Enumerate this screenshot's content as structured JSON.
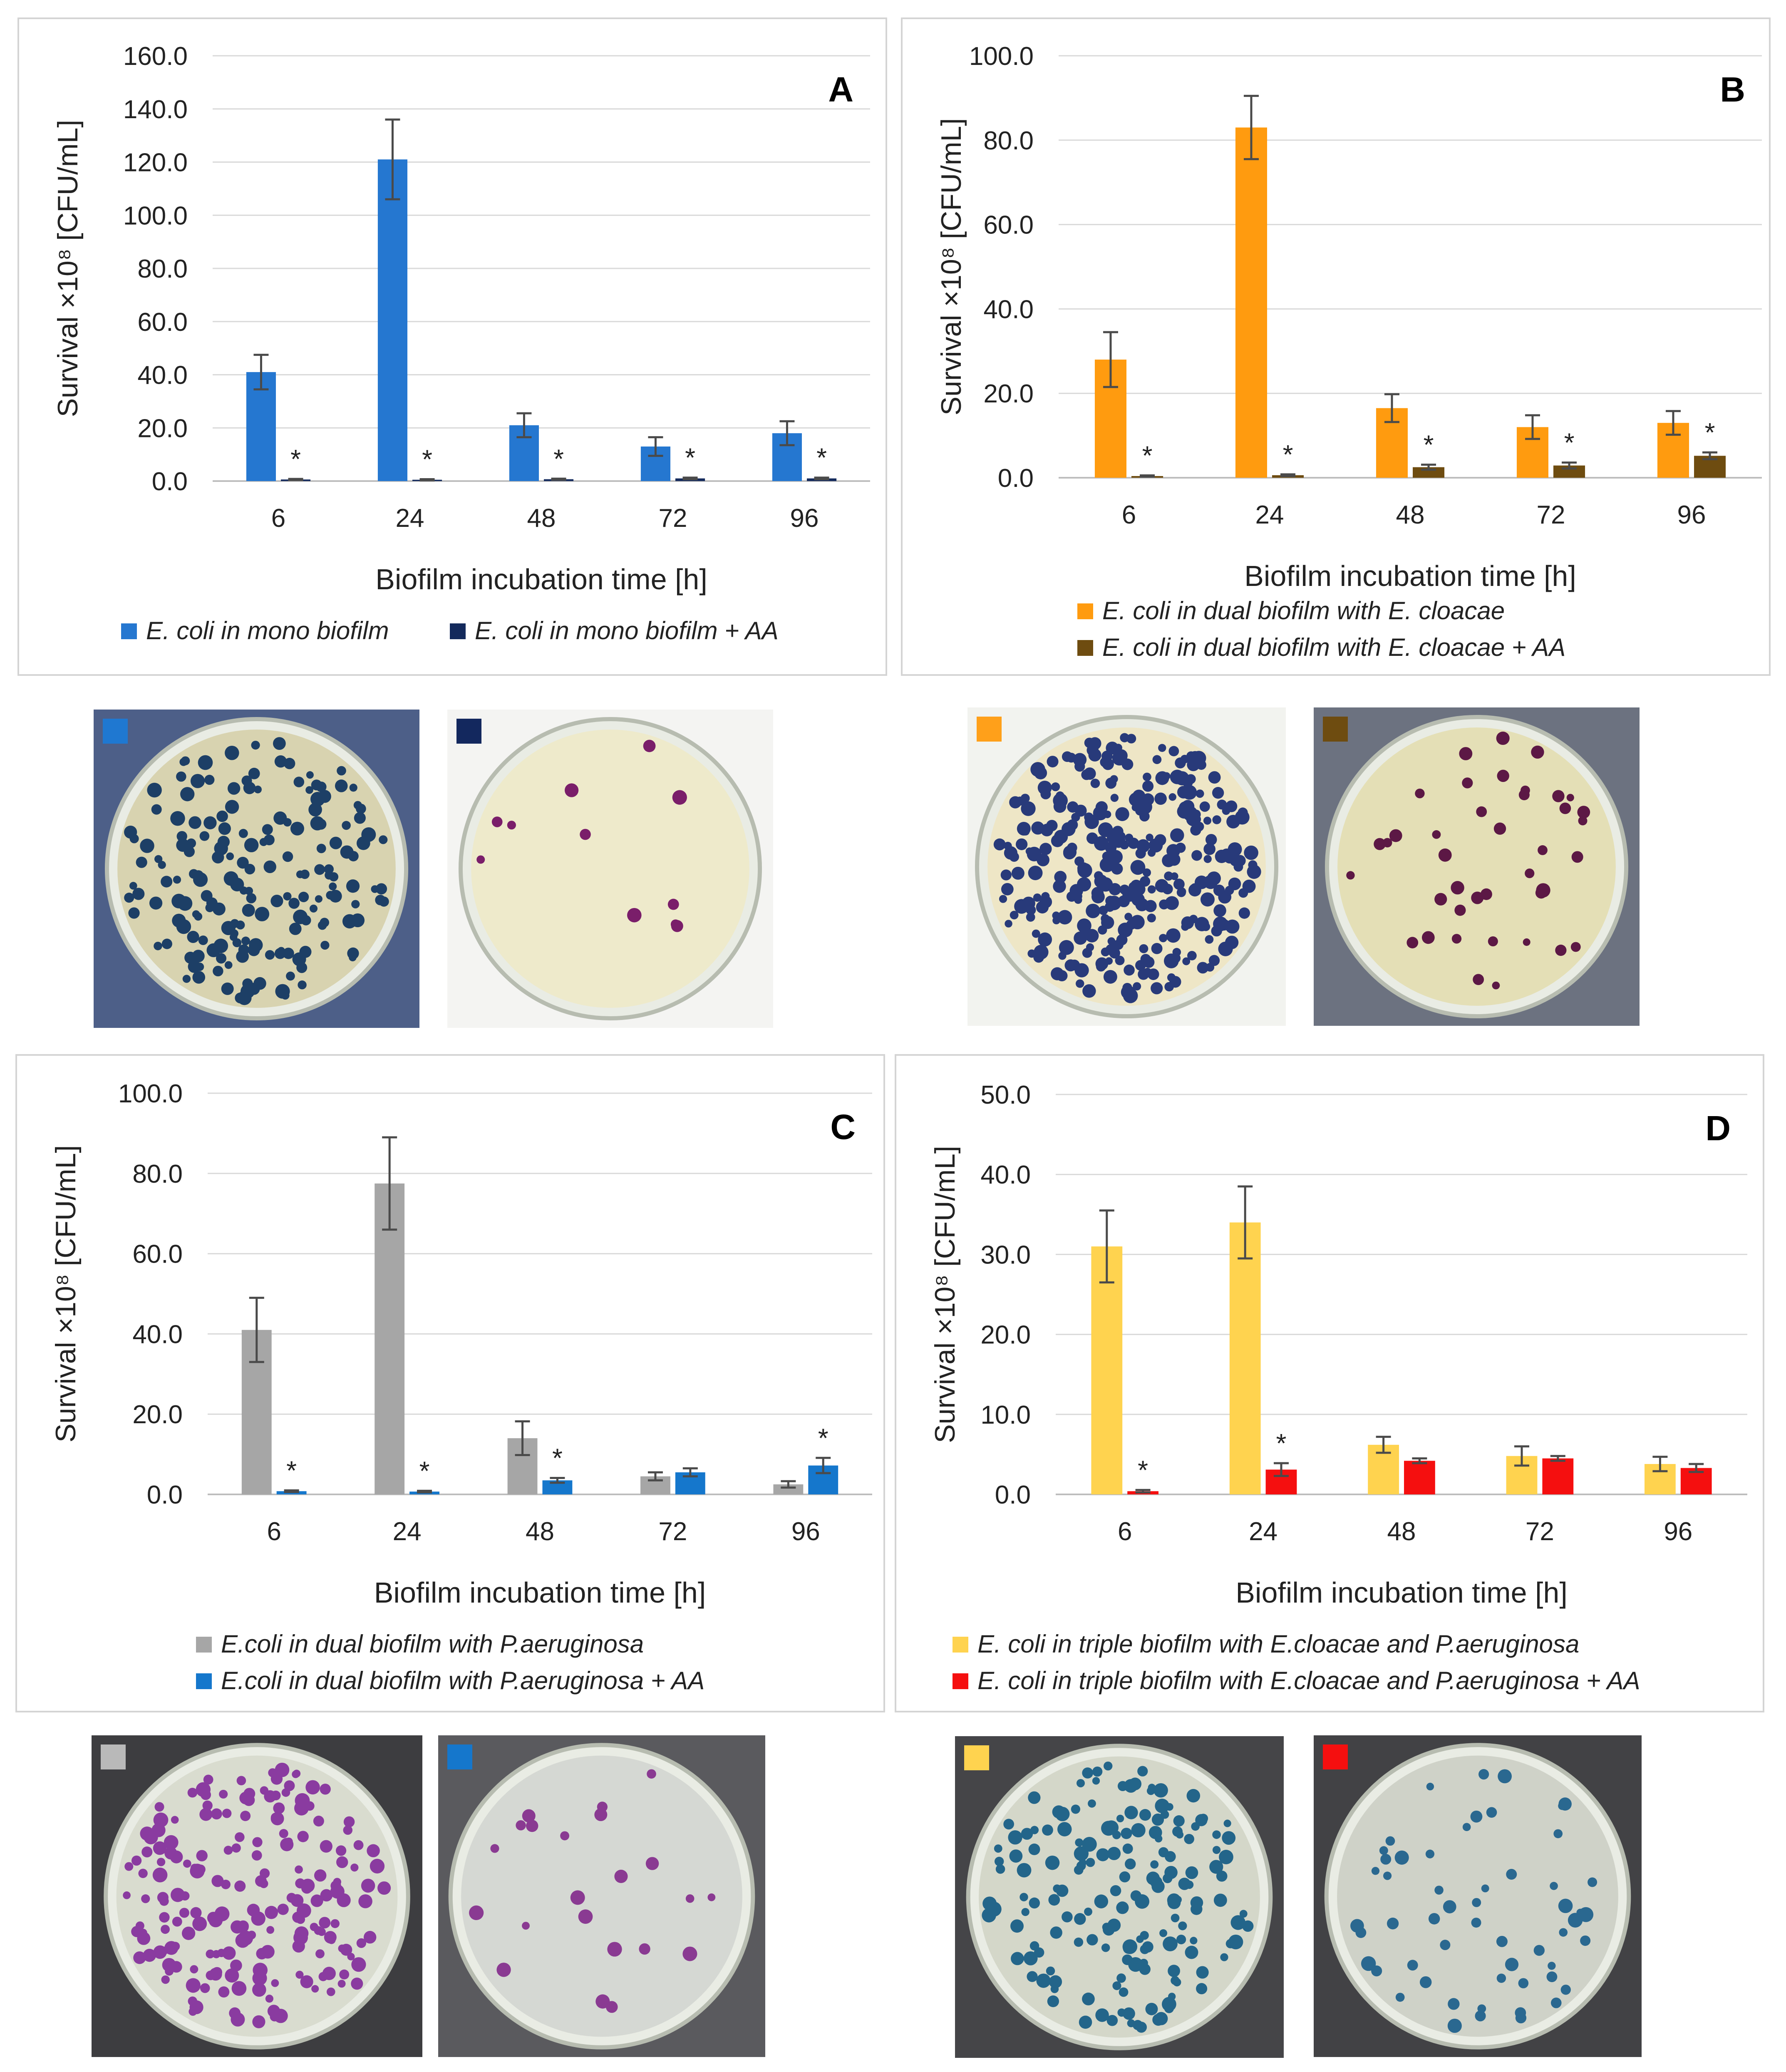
{
  "charts": [
    {
      "panel_letter": "A",
      "chart_data": {
        "type": "bar",
        "title": "A",
        "xlabel": "Biofilm incubation time [h]",
        "ylabel": "Survival ×10⁸ [CFU/mL]",
        "ylim": [
          0,
          160
        ],
        "ytick_step": 20,
        "ytick_labels": [
          "0.0",
          "20.0",
          "40.0",
          "60.0",
          "80.0",
          "100.0",
          "120.0",
          "140.0",
          "160.0"
        ],
        "categories": [
          "6",
          "24",
          "48",
          "72",
          "96"
        ],
        "series": [
          {
            "name": "E. coli in mono biofilm",
            "color": "#2577d0",
            "values": [
              41,
              121,
              21,
              13,
              18
            ],
            "errors": [
              6.5,
              15,
              4.5,
              3.5,
              4.5
            ]
          },
          {
            "name": "E. coli in mono biofilm + AA",
            "color": "#142a5c",
            "values": [
              0.6,
              0.5,
              0.7,
              1.0,
              1.0
            ],
            "errors": [
              0.2,
              0.2,
              0.2,
              0.3,
              0.3
            ]
          }
        ],
        "annotations": [
          {
            "series": 1,
            "category": 0,
            "text": "*"
          },
          {
            "series": 1,
            "category": 1,
            "text": "*"
          },
          {
            "series": 1,
            "category": 2,
            "text": "*"
          },
          {
            "series": 1,
            "category": 3,
            "text": "*"
          },
          {
            "series": 1,
            "category": 4,
            "text": "*"
          }
        ],
        "legend_placement": "bottom"
      }
    },
    {
      "panel_letter": "B",
      "chart_data": {
        "type": "bar",
        "title": "B",
        "xlabel": "Biofilm incubation time [h]",
        "ylabel": "Survival ×10⁸ [CFU/mL]",
        "ylim": [
          0,
          100
        ],
        "ytick_step": 20,
        "ytick_labels": [
          "0.0",
          "20.0",
          "40.0",
          "60.0",
          "80.0",
          "100.0"
        ],
        "categories": [
          "6",
          "24",
          "48",
          "72",
          "96"
        ],
        "series": [
          {
            "name": "E. coli in dual biofilm with E. cloacae",
            "color": "#ff9b0f",
            "values": [
              28,
              83,
              16.5,
              12,
              13
            ],
            "errors": [
              6.5,
              7.5,
              3.3,
              2.8,
              2.8
            ]
          },
          {
            "name": "E. coli in dual biofilm with E. cloacae + AA",
            "color": "#6e4c10",
            "values": [
              0.4,
              0.6,
              2.5,
              2.9,
              5.2
            ],
            "errors": [
              0.15,
              0.2,
              0.6,
              0.7,
              0.8
            ]
          }
        ],
        "annotations": [
          {
            "series": 1,
            "category": 0,
            "text": "*"
          },
          {
            "series": 1,
            "category": 1,
            "text": "*"
          },
          {
            "series": 1,
            "category": 2,
            "text": "*"
          },
          {
            "series": 1,
            "category": 3,
            "text": "*"
          },
          {
            "series": 1,
            "category": 4,
            "text": "*"
          }
        ],
        "legend_placement": "bottom"
      }
    },
    {
      "panel_letter": "C",
      "chart_data": {
        "type": "bar",
        "title": "C",
        "xlabel": "Biofilm incubation time [h]",
        "ylabel": "Survival ×10⁸ [CFU/mL]",
        "ylim": [
          0,
          100
        ],
        "ytick_step": 20,
        "ytick_labels": [
          "0.0",
          "20.0",
          "40.0",
          "60.0",
          "80.0",
          "100.0"
        ],
        "categories": [
          "6",
          "24",
          "48",
          "72",
          "96"
        ],
        "series": [
          {
            "name": "E.coli in dual biofilm with P.aeruginosa",
            "color": "#a6a6a6",
            "values": [
              41,
              77.5,
              14,
              4.5,
              2.5
            ],
            "errors": [
              8,
              11.5,
              4.2,
              1.0,
              0.8
            ]
          },
          {
            "name": "E.coli in dual biofilm with P.aeruginosa + AA",
            "color": "#1577cc",
            "values": [
              0.8,
              0.7,
              3.5,
              5.5,
              7.2
            ],
            "errors": [
              0.2,
              0.2,
              0.6,
              1.0,
              1.9
            ]
          }
        ],
        "annotations": [
          {
            "series": 1,
            "category": 0,
            "text": "*"
          },
          {
            "series": 1,
            "category": 1,
            "text": "*"
          },
          {
            "series": 1,
            "category": 2,
            "text": "*"
          },
          {
            "series": 1,
            "category": 4,
            "text": "*"
          }
        ],
        "legend_placement": "bottom"
      }
    },
    {
      "panel_letter": "D",
      "chart_data": {
        "type": "bar",
        "title": "D",
        "xlabel": "Biofilm incubation time [h]",
        "ylabel": "Survival ×10⁸ [CFU/mL]",
        "ylim": [
          0,
          50
        ],
        "ytick_step": 10,
        "ytick_labels": [
          "0.0",
          "10.0",
          "20.0",
          "30.0",
          "40.0",
          "50.0"
        ],
        "categories": [
          "6",
          "24",
          "48",
          "72",
          "96"
        ],
        "series": [
          {
            "name": "E. coli in triple biofilm with E.cloacae and P.aeruginosa",
            "color": "#ffd34f",
            "values": [
              31,
              34,
              6.2,
              4.8,
              3.8
            ],
            "errors": [
              4.5,
              4.5,
              1.0,
              1.2,
              0.9
            ]
          },
          {
            "name": "E. coli in triple biofilm with E.cloacae and P.aeruginosa + AA",
            "color": "#f50f0f",
            "values": [
              0.4,
              3.1,
              4.2,
              4.5,
              3.3
            ],
            "errors": [
              0.15,
              0.8,
              0.3,
              0.3,
              0.5
            ]
          }
        ],
        "annotations": [
          {
            "series": 1,
            "category": 0,
            "text": "*"
          },
          {
            "series": 1,
            "category": 1,
            "text": "*"
          }
        ],
        "legend_placement": "bottom"
      }
    }
  ],
  "plates": [
    {
      "marker_color": "#1f78d1",
      "background": "#4d5f88",
      "medium": "#d8d3b0",
      "colony": "#1d3f66",
      "count": 180
    },
    {
      "marker_color": "#13285e",
      "background": "#f4f4f2",
      "medium": "#eeeacb",
      "colony": "#7a1e6a",
      "count": 11
    },
    {
      "marker_color": "#ffa01a",
      "background": "#f2f3ef",
      "medium": "#eee6c6",
      "colony": "#283a7a",
      "count": 320
    },
    {
      "marker_color": "#6e4c10",
      "background": "#6c7280",
      "medium": "#e4dfb6",
      "colony": "#5c1845",
      "count": 40
    },
    {
      "marker_color": "#b9b9b9",
      "background": "#3d3d40",
      "medium": "#d9dccf",
      "colony": "#8a3ba0",
      "count": 200
    },
    {
      "marker_color": "#1577cc",
      "background": "#5a5a5e",
      "medium": "#d5d8d3",
      "colony": "#8a3a92",
      "count": 22
    },
    {
      "marker_color": "#ffd34f",
      "background": "#454548",
      "medium": "#d4d7c9",
      "colony": "#23658a",
      "count": 170
    },
    {
      "marker_color": "#f50f0f",
      "background": "#424245",
      "medium": "#cfd2c8",
      "colony": "#2a6890",
      "count": 55
    }
  ]
}
